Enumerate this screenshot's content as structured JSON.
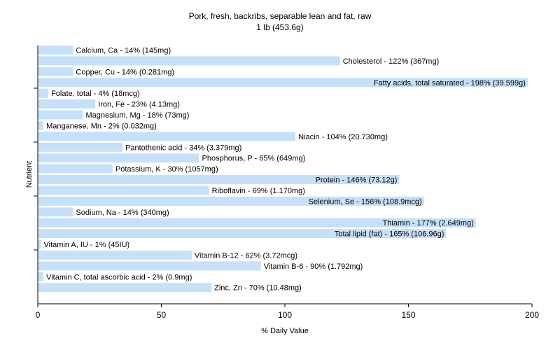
{
  "chart_data": {
    "type": "bar",
    "orientation": "horizontal",
    "title": "Pork, fresh, backribs, separable lean and fat, raw",
    "subtitle": "1 lb (453.6g)",
    "xlabel": "% Daily Value",
    "ylabel": "Nutrient",
    "xlim": [
      0,
      200
    ],
    "xticks": [
      "0",
      "50",
      "100",
      "150",
      "200"
    ],
    "grid": false,
    "bar_color": "#c6e0fa",
    "categories": [
      "Calcium, Ca",
      "Cholesterol",
      "Copper, Cu",
      "Fatty acids, total saturated",
      "Folate, total",
      "Iron, Fe",
      "Magnesium, Mg",
      "Manganese, Mn",
      "Niacin",
      "Pantothenic acid",
      "Phosphorus, P",
      "Potassium, K",
      "Protein",
      "Riboflavin",
      "Selenium, Se",
      "Sodium, Na",
      "Thiamin",
      "Total lipid (fat)",
      "Vitamin A, IU",
      "Vitamin B-12",
      "Vitamin B-6",
      "Vitamin C, total ascorbic acid",
      "Zinc, Zn"
    ],
    "values": [
      14,
      122,
      14,
      198,
      4,
      23,
      18,
      2,
      104,
      34,
      65,
      30,
      146,
      69,
      156,
      14,
      177,
      165,
      1,
      62,
      90,
      2,
      70
    ],
    "labels": [
      "Calcium, Ca - 14% (145mg)",
      "Cholesterol - 122% (367mg)",
      "Copper, Cu - 14% (0.281mg)",
      "Fatty acids, total saturated - 198% (39.599g)",
      "Folate, total - 4% (18mcg)",
      "Iron, Fe - 23% (4.13mg)",
      "Magnesium, Mg - 18% (73mg)",
      "Manganese, Mn - 2% (0.032mg)",
      "Niacin - 104% (20.730mg)",
      "Pantothenic acid - 34% (3.379mg)",
      "Phosphorus, P - 65% (649mg)",
      "Potassium, K - 30% (1057mg)",
      "Protein - 146% (73.12g)",
      "Riboflavin - 69% (1.170mg)",
      "Selenium, Se - 156% (108.9mcg)",
      "Sodium, Na - 14% (340mg)",
      "Thiamin - 177% (2.649mg)",
      "Total lipid (fat) - 165% (106.96g)",
      "Vitamin A, IU - 1% (45IU)",
      "Vitamin B-12 - 62% (3.72mcg)",
      "Vitamin B-6 - 90% (1.792mg)",
      "Vitamin C, total ascorbic acid - 2% (0.9mg)",
      "Zinc, Zn - 70% (10.48mg)"
    ]
  }
}
